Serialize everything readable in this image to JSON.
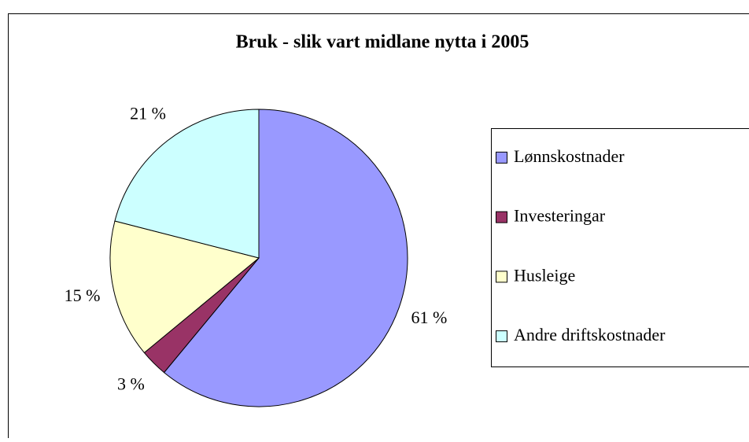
{
  "chart_data": {
    "type": "pie",
    "title": "Bruk - slik vart midlane nytta i 2005",
    "categories": [
      "Lønnskostnader",
      "Investeringar",
      "Husleige",
      "Andre driftskostnader"
    ],
    "values": [
      61,
      3,
      15,
      21
    ],
    "value_labels": [
      "61 %",
      "3 %",
      "15 %",
      "21 %"
    ],
    "colors": [
      "#9999ff",
      "#993366",
      "#ffffcc",
      "#ccffff"
    ],
    "legend": "right"
  }
}
